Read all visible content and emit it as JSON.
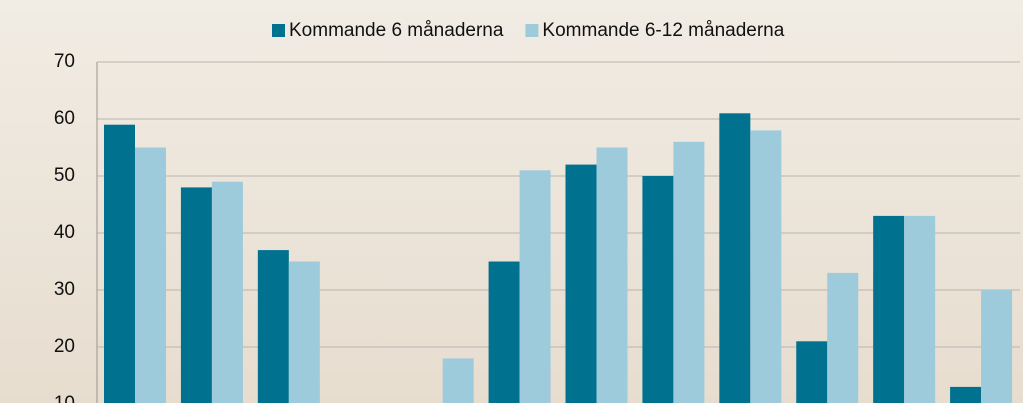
{
  "chart_data": {
    "type": "bar",
    "categories": [
      null,
      null,
      null,
      null,
      null,
      null,
      null,
      null,
      null,
      null,
      null,
      null
    ],
    "series": [
      {
        "name": "Kommande 6 månaderna",
        "color": "#00718f",
        "values": [
          59,
          48,
          37,
          null,
          null,
          35,
          52,
          50,
          61,
          21,
          43,
          13
        ]
      },
      {
        "name": "Kommande 6-12 månaderna",
        "color": "#9dcbdb",
        "values": [
          55,
          49,
          35,
          null,
          18,
          51,
          55,
          56,
          58,
          33,
          43,
          30
        ]
      }
    ],
    "ylim": [
      10,
      70
    ],
    "yticks": [
      10,
      20,
      30,
      40,
      50,
      60,
      70
    ],
    "grid": true,
    "legend": "top"
  }
}
